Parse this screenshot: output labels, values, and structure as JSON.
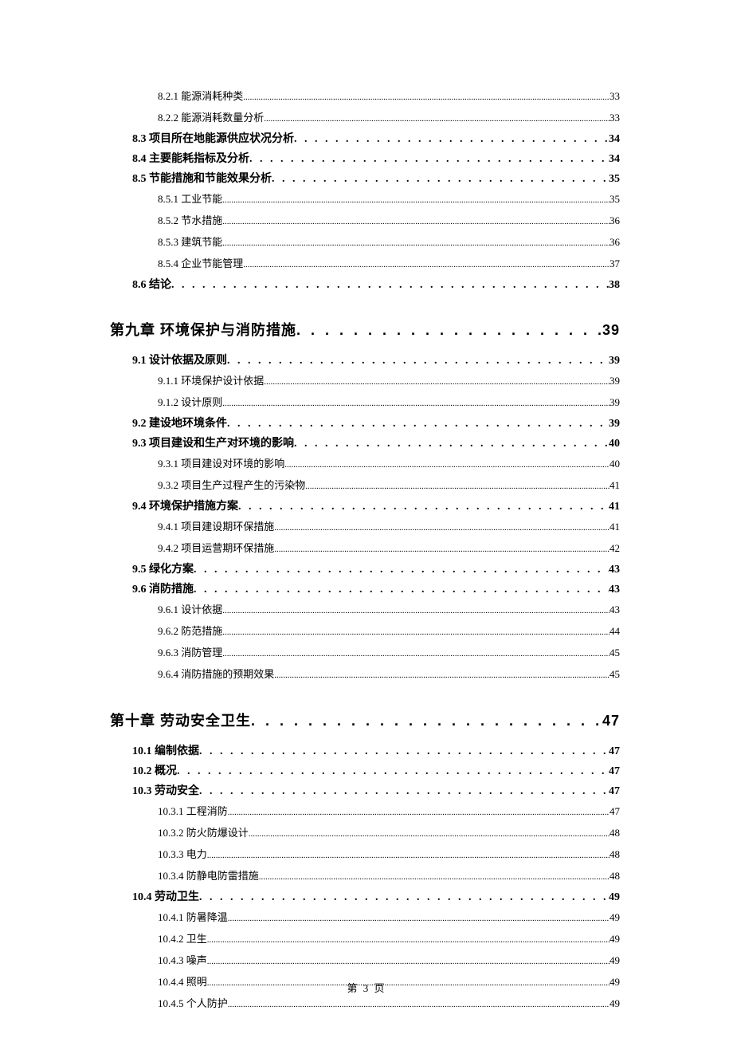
{
  "footer": "第 3 页",
  "dots_chapter": ". . . . . . . . . . . . . . . . . . . . . . . . . . . . . . . . . . . . . . . . . . . . . . . . . . . . . . . . . . . . . . . . . . . . . . . . . . . . . . . . . . . . . .",
  "dots_section": ". . . . . . . . . . . . . . . . . . . . . . . . . . . . . . . . . . . . . . . . . . . . . . . . . . . . . . . . . . . . . . . . . . . . . . . . . . . . . . . . . . . . . . . . . . . . . . . . . . . . . . . . . . . . . . . . . . .",
  "dots_sub": ".................................................................................................................................................................................................................................................",
  "entries": [
    {
      "level": "sub",
      "label": "8.2.1 能源消耗种类",
      "page": "33"
    },
    {
      "level": "sub",
      "label": "8.2.2 能源消耗数量分析",
      "page": "33"
    },
    {
      "level": "section",
      "label": "8.3 项目所在地能源供应状况分析",
      "page": "34"
    },
    {
      "level": "section",
      "label": "8.4 主要能耗指标及分析",
      "page": "34"
    },
    {
      "level": "section",
      "label": "8.5 节能措施和节能效果分析",
      "page": "35"
    },
    {
      "level": "sub",
      "label": "8.5.1 工业节能",
      "page": "35"
    },
    {
      "level": "sub",
      "label": "8.5.2 节水措施",
      "page": "36"
    },
    {
      "level": "sub",
      "label": "8.5.3 建筑节能",
      "page": "36"
    },
    {
      "level": "sub",
      "label": "8.5.4 企业节能管理",
      "page": "37"
    },
    {
      "level": "section",
      "label": "8.6 结论",
      "page": "38"
    },
    {
      "level": "chapter",
      "label": "第九章 环境保护与消防措施",
      "page": "39"
    },
    {
      "level": "section",
      "label": "9.1 设计依据及原则",
      "page": "39"
    },
    {
      "level": "sub",
      "label": "9.1.1 环境保护设计依据",
      "page": "39"
    },
    {
      "level": "sub",
      "label": "9.1.2 设计原则",
      "page": "39"
    },
    {
      "level": "section",
      "label": "9.2 建设地环境条件",
      "page": "39"
    },
    {
      "level": "section",
      "label": "9.3 项目建设和生产对环境的影响",
      "page": "40"
    },
    {
      "level": "sub",
      "label": "9.3.1 项目建设对环境的影响",
      "page": "40"
    },
    {
      "level": "sub",
      "label": "9.3.2 项目生产过程产生的污染物",
      "page": "41"
    },
    {
      "level": "section",
      "label": "9.4 环境保护措施方案",
      "page": "41"
    },
    {
      "level": "sub",
      "label": "9.4.1 项目建设期环保措施",
      "page": "41"
    },
    {
      "level": "sub",
      "label": "9.4.2 项目运营期环保措施",
      "page": "42"
    },
    {
      "level": "section",
      "label": "9.5 绿化方案",
      "page": "43"
    },
    {
      "level": "section",
      "label": "9.6 消防措施",
      "page": "43"
    },
    {
      "level": "sub",
      "label": "9.6.1 设计依据",
      "page": "43"
    },
    {
      "level": "sub",
      "label": "9.6.2 防范措施",
      "page": "44"
    },
    {
      "level": "sub",
      "label": "9.6.3 消防管理",
      "page": "45"
    },
    {
      "level": "sub",
      "label": "9.6.4 消防措施的预期效果",
      "page": "45"
    },
    {
      "level": "chapter",
      "label": "第十章 劳动安全卫生",
      "page": "47"
    },
    {
      "level": "section",
      "label": "10.1 编制依据",
      "page": "47"
    },
    {
      "level": "section",
      "label": "10.2 概况",
      "page": "47"
    },
    {
      "level": "section",
      "label": "10.3 劳动安全",
      "page": "47"
    },
    {
      "level": "sub",
      "label": "10.3.1 工程消防",
      "page": "47"
    },
    {
      "level": "sub",
      "label": "10.3.2 防火防爆设计",
      "page": "48"
    },
    {
      "level": "sub",
      "label": "10.3.3 电力",
      "page": "48"
    },
    {
      "level": "sub",
      "label": "10.3.4 防静电防雷措施",
      "page": "48"
    },
    {
      "level": "section",
      "label": "10.4 劳动卫生",
      "page": "49"
    },
    {
      "level": "sub",
      "label": "10.4.1 防暑降温",
      "page": "49"
    },
    {
      "level": "sub",
      "label": "10.4.2 卫生",
      "page": "49"
    },
    {
      "level": "sub",
      "label": "10.4.3 噪声",
      "page": "49"
    },
    {
      "level": "sub",
      "label": "10.4.4 照明",
      "page": "49"
    },
    {
      "level": "sub",
      "label": "10.4.5 个人防护",
      "page": "49"
    }
  ]
}
